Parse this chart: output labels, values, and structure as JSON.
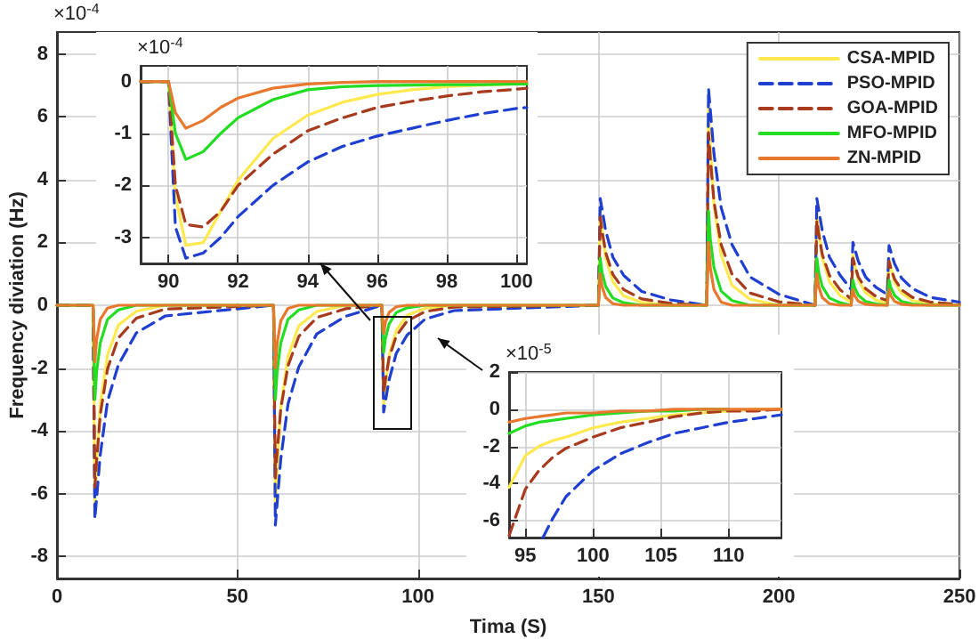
{
  "chart_data": [
    {
      "type": "line",
      "xlabel": "Tima (S)",
      "ylabel": "Frequency diviation (Hz)",
      "annotations": [
        "×10$^{-4}$"
      ],
      "legend": "top right",
      "grid": true,
      "xlim": [
        0,
        250
      ],
      "ylim": [
        -8.7,
        8.7
      ],
      "xticks": [
        0,
        50,
        100,
        150,
        200,
        250
      ],
      "yticks": [
        -8,
        -6,
        -4,
        -2,
        0,
        2,
        4,
        6,
        8
      ],
      "x": [
        0,
        10,
        10.5,
        11,
        12,
        14,
        17,
        22,
        30,
        60,
        60.5,
        61,
        62,
        64,
        67,
        72,
        80,
        90,
        90.5,
        91,
        92,
        94,
        97,
        102,
        110,
        150,
        150.5,
        151,
        152,
        154,
        157,
        162,
        170,
        180,
        180.5,
        181,
        182,
        184,
        187,
        192,
        200,
        210,
        210.5,
        211,
        212,
        214,
        217,
        220,
        220.5,
        221,
        222,
        224,
        227,
        230,
        230.5,
        231,
        232,
        234,
        237,
        242,
        250
      ],
      "series": [
        {
          "name": "CSA-MPID",
          "color": "#ffe94f",
          "line_style": "solid",
          "values": [
            0,
            0,
            -6.3,
            -5.04,
            -3.15,
            -1.58,
            -0.63,
            -0.19,
            0,
            0,
            -6.5,
            -5.2,
            -3.25,
            -1.63,
            -0.65,
            -0.2,
            0,
            0,
            -3.2,
            -2.56,
            -1.6,
            -0.8,
            -0.32,
            -0.1,
            0,
            0,
            3,
            2.4,
            1.5,
            0.75,
            0.3,
            0.09,
            0,
            0,
            6.4,
            5.12,
            3.2,
            1.6,
            0.64,
            0.19,
            0,
            0,
            3,
            2.4,
            1.5,
            0.75,
            0.3,
            0.1,
            1.6,
            1.28,
            0.8,
            0.4,
            0.16,
            0.05,
            1.5,
            1.2,
            0.75,
            0.38,
            0.15,
            0.05,
            0
          ]
        },
        {
          "name": "PSO-MPID",
          "color": "#1f3fd0",
          "line_style": "dashed",
          "values": [
            0,
            0,
            -6.8,
            -6.12,
            -4.76,
            -3.06,
            -1.9,
            -0.88,
            -0.34,
            0,
            -7,
            -6.3,
            -4.9,
            -3.15,
            -1.96,
            -0.91,
            -0.35,
            0,
            -3.4,
            -3.06,
            -2.38,
            -1.53,
            -0.95,
            -0.44,
            -0.17,
            0,
            3.4,
            3.06,
            2.38,
            1.53,
            0.95,
            0.44,
            0.17,
            0,
            6.9,
            6.21,
            4.83,
            3.11,
            1.93,
            0.9,
            0.35,
            0,
            3.4,
            3.06,
            2.38,
            1.53,
            0.95,
            0.5,
            2,
            1.8,
            1.4,
            0.9,
            0.56,
            0.35,
            1.9,
            1.71,
            1.33,
            0.86,
            0.53,
            0.25,
            0.1
          ]
        },
        {
          "name": "GOA-MPID",
          "color": "#a83a1e",
          "line_style": "dashed",
          "values": [
            0,
            0,
            -5.8,
            -4.93,
            -3.48,
            -2.03,
            -1.04,
            -0.41,
            -0.12,
            0,
            -5.5,
            -4.68,
            -3.3,
            -1.93,
            -0.99,
            -0.39,
            -0.11,
            0,
            -2.8,
            -2.38,
            -1.68,
            -0.98,
            -0.5,
            -0.2,
            -0.06,
            0,
            2.8,
            2.38,
            1.68,
            0.98,
            0.5,
            0.2,
            0.06,
            0,
            5.5,
            4.68,
            3.3,
            1.93,
            0.99,
            0.39,
            0.11,
            0,
            2.7,
            2.3,
            1.62,
            0.95,
            0.49,
            0.2,
            1.5,
            1.28,
            0.9,
            0.53,
            0.27,
            0.15,
            1.4,
            1.19,
            0.84,
            0.49,
            0.25,
            0.1,
            0.03
          ]
        },
        {
          "name": "MFO-MPID",
          "color": "#22dd22",
          "line_style": "solid",
          "values": [
            0,
            0,
            -3,
            -2.1,
            -1.2,
            -0.45,
            -0.15,
            0,
            0,
            0,
            -3,
            -2.1,
            -1.2,
            -0.45,
            -0.15,
            0,
            0,
            0,
            -1.5,
            -1.05,
            -0.6,
            -0.23,
            -0.08,
            0,
            0,
            0,
            1.5,
            1.05,
            0.6,
            0.23,
            0.08,
            0,
            0,
            0,
            3,
            2.1,
            1.2,
            0.45,
            0.15,
            0,
            0,
            0,
            1.5,
            1.05,
            0.6,
            0.23,
            0.08,
            0,
            0.8,
            0.56,
            0.32,
            0.12,
            0.04,
            0,
            0.8,
            0.56,
            0.32,
            0.12,
            0.04,
            0,
            0
          ]
        },
        {
          "name": "ZN-MPID",
          "color": "#e8782e",
          "line_style": "solid",
          "values": [
            0,
            0,
            -1.8,
            -1.08,
            -0.45,
            -0.09,
            0,
            0,
            0,
            0,
            -2,
            -1.2,
            -0.5,
            -0.1,
            0,
            0,
            0,
            0,
            -0.9,
            -0.54,
            -0.23,
            -0.05,
            0,
            0,
            0,
            0,
            1,
            0.6,
            0.25,
            0.05,
            0,
            0,
            0,
            0,
            2,
            1.2,
            0.5,
            0.1,
            0,
            0,
            0,
            0,
            1,
            0.6,
            0.25,
            0.05,
            0,
            0,
            0.5,
            0.3,
            0.13,
            0.03,
            0,
            0,
            0.5,
            0.3,
            0.13,
            0.03,
            0,
            0,
            0
          ]
        }
      ]
    },
    {
      "type": "line",
      "annotations": [
        "×10$^{-4}$"
      ],
      "grid": true,
      "xlim": [
        89.2,
        100.3
      ],
      "ylim": [
        -3.5,
        0.3
      ],
      "xticks": [
        90,
        92,
        94,
        96,
        98,
        100
      ],
      "yticks": [
        -3,
        -2,
        -1,
        0
      ],
      "x": [
        89.2,
        90,
        90.2,
        90.5,
        91,
        91.5,
        92,
        93,
        94,
        95,
        96,
        97,
        98,
        99,
        100,
        100.3
      ],
      "series": [
        {
          "color": "#ffe94f",
          "line_style": "solid",
          "values": [
            0,
            0,
            -2.2,
            -3.15,
            -3.1,
            -2.5,
            -1.9,
            -1.1,
            -0.65,
            -0.4,
            -0.25,
            -0.16,
            -0.1,
            -0.07,
            -0.05,
            -0.05
          ]
        },
        {
          "color": "#1f3fd0",
          "line_style": "dashed",
          "values": [
            0,
            0,
            -2.8,
            -3.4,
            -3.3,
            -3,
            -2.6,
            -2,
            -1.55,
            -1.25,
            -1.05,
            -0.9,
            -0.75,
            -0.62,
            -0.52,
            -0.5
          ]
        },
        {
          "color": "#a83a1e",
          "line_style": "dashed",
          "values": [
            0,
            0,
            -2,
            -2.75,
            -2.8,
            -2.5,
            -2,
            -1.4,
            -0.95,
            -0.7,
            -0.5,
            -0.38,
            -0.28,
            -0.2,
            -0.15,
            -0.13
          ]
        },
        {
          "color": "#22dd22",
          "line_style": "solid",
          "values": [
            0,
            0,
            -1,
            -1.5,
            -1.35,
            -1,
            -0.7,
            -0.35,
            -0.16,
            -0.1,
            -0.08,
            -0.07,
            -0.06,
            -0.06,
            -0.05,
            -0.05
          ]
        },
        {
          "color": "#e8782e",
          "line_style": "solid",
          "values": [
            0,
            0,
            -0.6,
            -0.9,
            -0.75,
            -0.5,
            -0.32,
            -0.13,
            -0.05,
            -0.02,
            0,
            0,
            0,
            0,
            0,
            0
          ]
        }
      ]
    },
    {
      "type": "line",
      "annotations": [
        "×10$^{-5}$"
      ],
      "grid": true,
      "xlim": [
        93.8,
        113.9
      ],
      "ylim": [
        -6.9,
        2
      ],
      "xticks": [
        95,
        100,
        105,
        110
      ],
      "yticks": [
        -6,
        -4,
        -2,
        0,
        2
      ],
      "x": [
        93.8,
        95,
        96,
        97,
        98,
        100,
        102,
        104,
        106,
        108,
        110,
        112,
        113.9
      ],
      "series": [
        {
          "color": "#ffe94f",
          "line_style": "solid",
          "values": [
            -4.2,
            -2.5,
            -2,
            -1.7,
            -1.5,
            -1,
            -0.7,
            -0.5,
            -0.3,
            -0.2,
            -0.1,
            0,
            0
          ]
        },
        {
          "color": "#1f3fd0",
          "line_style": "dashed",
          "x": [
            96.3,
            97,
            98,
            100,
            102,
            104,
            106,
            108,
            110,
            112,
            113.9
          ],
          "values": [
            -6.9,
            -5.9,
            -4.7,
            -3.3,
            -2.4,
            -1.8,
            -1.3,
            -1,
            -0.7,
            -0.5,
            -0.3
          ]
        },
        {
          "color": "#a83a1e",
          "line_style": "dashed",
          "values": [
            -6.8,
            -4.3,
            -3.3,
            -2.6,
            -2.1,
            -1.5,
            -1,
            -0.7,
            -0.4,
            -0.2,
            -0.1,
            -0.1,
            0
          ]
        },
        {
          "color": "#22dd22",
          "line_style": "solid",
          "values": [
            -1.3,
            -0.9,
            -0.7,
            -0.6,
            -0.5,
            -0.3,
            -0.2,
            -0.1,
            -0.1,
            0,
            0,
            null,
            null
          ]
        },
        {
          "color": "#e8782e",
          "line_style": "solid",
          "values": [
            -0.7,
            -0.5,
            -0.4,
            -0.3,
            -0.2,
            -0.2,
            -0.1,
            -0.1,
            0,
            0,
            0,
            0,
            0
          ]
        }
      ]
    }
  ]
}
